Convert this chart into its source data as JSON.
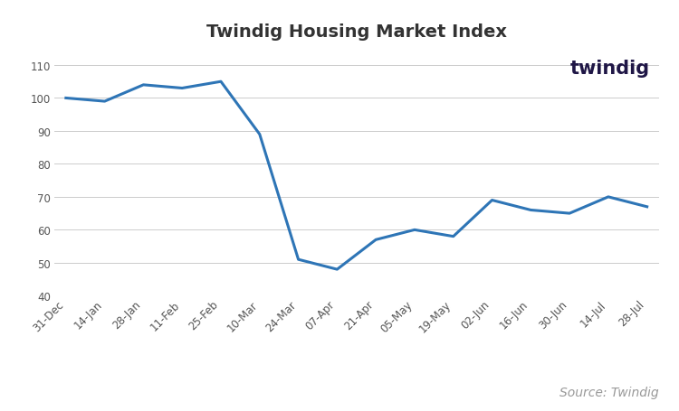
{
  "title": "Twindig Housing Market Index",
  "line_color": "#2E75B6",
  "line_width": 2.2,
  "background_color": "#FFFFFF",
  "grid_color": "#CCCCCC",
  "x_labels": [
    "31-Dec",
    "14-Jan",
    "28-Jan",
    "11-Feb",
    "25-Feb",
    "10-Mar",
    "24-Mar",
    "07-Apr",
    "21-Apr",
    "05-May",
    "19-May",
    "02-Jun",
    "16-Jun",
    "30-Jun",
    "14-Jul",
    "28-Jul"
  ],
  "y_values": [
    100,
    99,
    104,
    103,
    105,
    89,
    51,
    48,
    57,
    60,
    58,
    69,
    66,
    65,
    70,
    67
  ],
  "ylim": [
    40,
    115
  ],
  "yticks": [
    40,
    50,
    60,
    70,
    80,
    90,
    100,
    110
  ],
  "legend_label": "Twindig Housing Market Index",
  "source_text": "Source: Twindig",
  "twindig_text": "twindig",
  "twindig_color": "#1F1646",
  "source_color": "#999999",
  "title_fontsize": 14,
  "tick_fontsize": 8.5,
  "legend_fontsize": 9.5,
  "source_fontsize": 10
}
